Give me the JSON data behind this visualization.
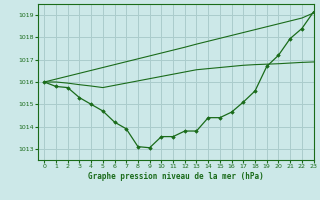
{
  "title": "Graphe pression niveau de la mer (hPa)",
  "background_color": "#cce8e8",
  "grid_color": "#aacccc",
  "line_color": "#1a6b1a",
  "marker_color": "#1a6b1a",
  "xlim": [
    -0.5,
    23
  ],
  "ylim": [
    1012.5,
    1019.5
  ],
  "yticks": [
    1013,
    1014,
    1015,
    1016,
    1017,
    1018,
    1019
  ],
  "xticks": [
    0,
    1,
    2,
    3,
    4,
    5,
    6,
    7,
    8,
    9,
    10,
    11,
    12,
    13,
    14,
    15,
    16,
    17,
    18,
    19,
    20,
    21,
    22,
    23
  ],
  "series_marked": [
    1016.0,
    1015.8,
    1015.75,
    1015.3,
    1015.0,
    1014.7,
    1014.2,
    1013.9,
    1013.1,
    1013.05,
    1013.55,
    1013.55,
    1013.8,
    1013.8,
    1014.4,
    1014.4,
    1014.65,
    1015.1,
    1015.6,
    1016.7,
    1017.2,
    1017.95,
    1018.4,
    1019.15
  ],
  "series_upper": [
    1016.0,
    1016.13,
    1016.26,
    1016.39,
    1016.52,
    1016.65,
    1016.78,
    1016.91,
    1017.04,
    1017.17,
    1017.3,
    1017.43,
    1017.56,
    1017.7,
    1017.83,
    1017.96,
    1018.09,
    1018.22,
    1018.35,
    1018.48,
    1018.61,
    1018.74,
    1018.87,
    1019.1
  ],
  "series_lower": [
    1016.0,
    1016.0,
    1015.95,
    1015.88,
    1015.82,
    1015.75,
    1015.85,
    1015.95,
    1016.05,
    1016.15,
    1016.25,
    1016.35,
    1016.45,
    1016.55,
    1016.6,
    1016.65,
    1016.7,
    1016.75,
    1016.78,
    1016.8,
    1016.82,
    1016.85,
    1016.88,
    1016.9
  ]
}
